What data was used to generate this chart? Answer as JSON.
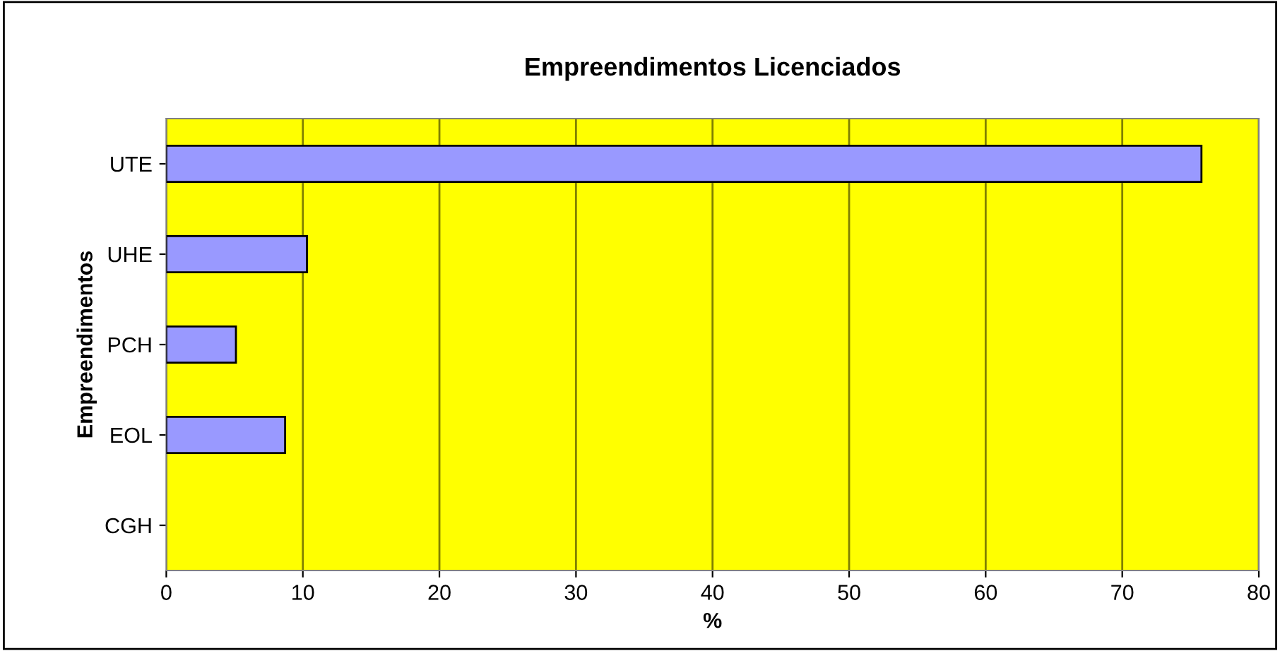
{
  "chart_data": {
    "type": "bar",
    "orientation": "horizontal",
    "title": "Empreendimentos Licenciados",
    "xlabel": "%",
    "ylabel": "Empreendimentos",
    "categories": [
      "UTE",
      "UHE",
      "PCH",
      "EOL",
      "CGH"
    ],
    "values": [
      75.8,
      10.3,
      5.1,
      8.7,
      0
    ],
    "color": "#9999ff",
    "xlim": [
      0,
      80
    ],
    "xticks": [
      0,
      10,
      20,
      30,
      40,
      50,
      60,
      70,
      80
    ],
    "grid": "x",
    "legend": false
  }
}
